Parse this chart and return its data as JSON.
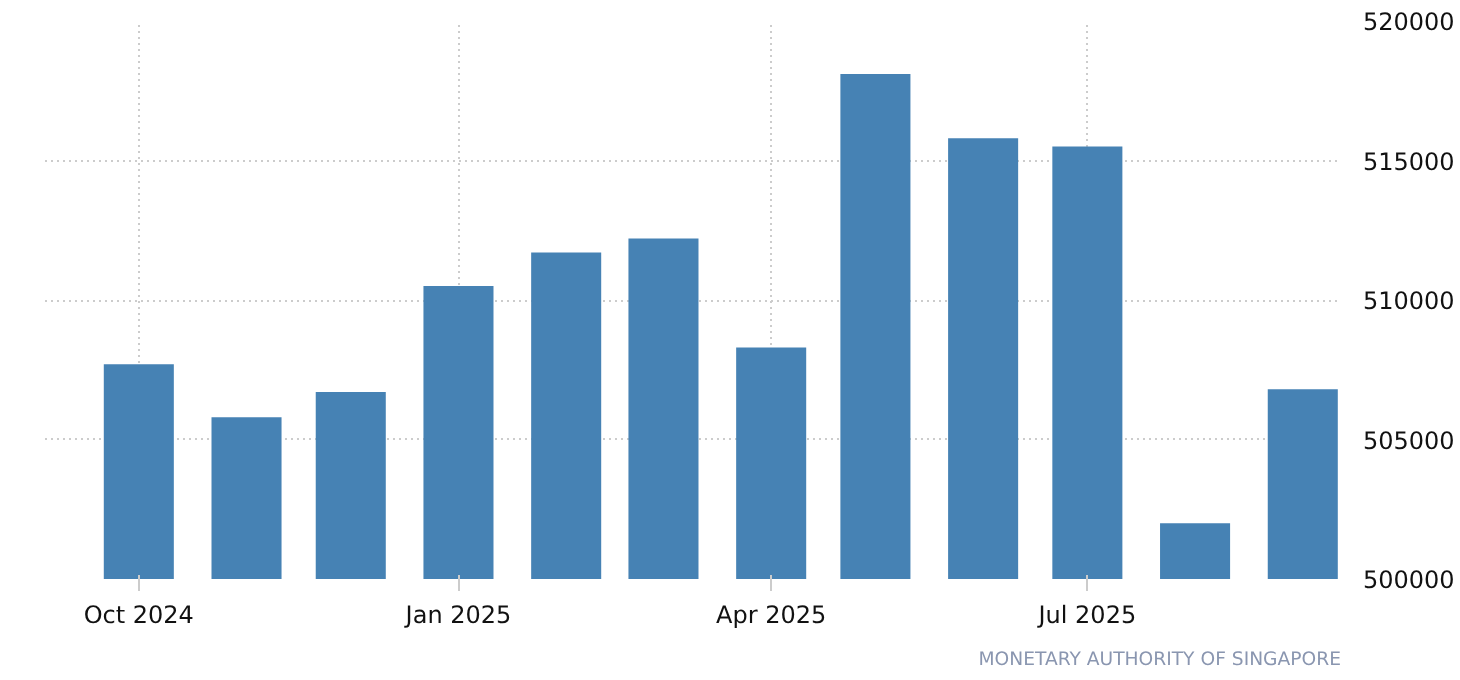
{
  "chart_data": {
    "type": "bar",
    "x": [
      "2024-10",
      "2024-11",
      "2024-12",
      "2025-01",
      "2025-02",
      "2025-03",
      "2025-04",
      "2025-05",
      "2025-06",
      "2025-07",
      "2025-08",
      "2025-09"
    ],
    "values": [
      507700,
      505800,
      506700,
      510500,
      511700,
      512200,
      508300,
      518100,
      515800,
      515500,
      502000,
      506800
    ],
    "color": "#4682b4",
    "xlim": [
      "2024-09-04",
      "2025-09-12"
    ],
    "xticks": [
      {
        "value": "2024-10",
        "label": "Oct 2024"
      },
      {
        "value": "2025-01",
        "label": "Jan 2025"
      },
      {
        "value": "2025-04",
        "label": "Apr 2025"
      },
      {
        "value": "2025-07",
        "label": "Jul 2025"
      }
    ],
    "ylim": [
      500000,
      520000
    ],
    "yticks": [
      500000,
      505000,
      510000,
      515000,
      520000
    ],
    "grid": true,
    "annotations": [
      "MONETARY AUTHORITY OF SINGAPORE"
    ]
  }
}
